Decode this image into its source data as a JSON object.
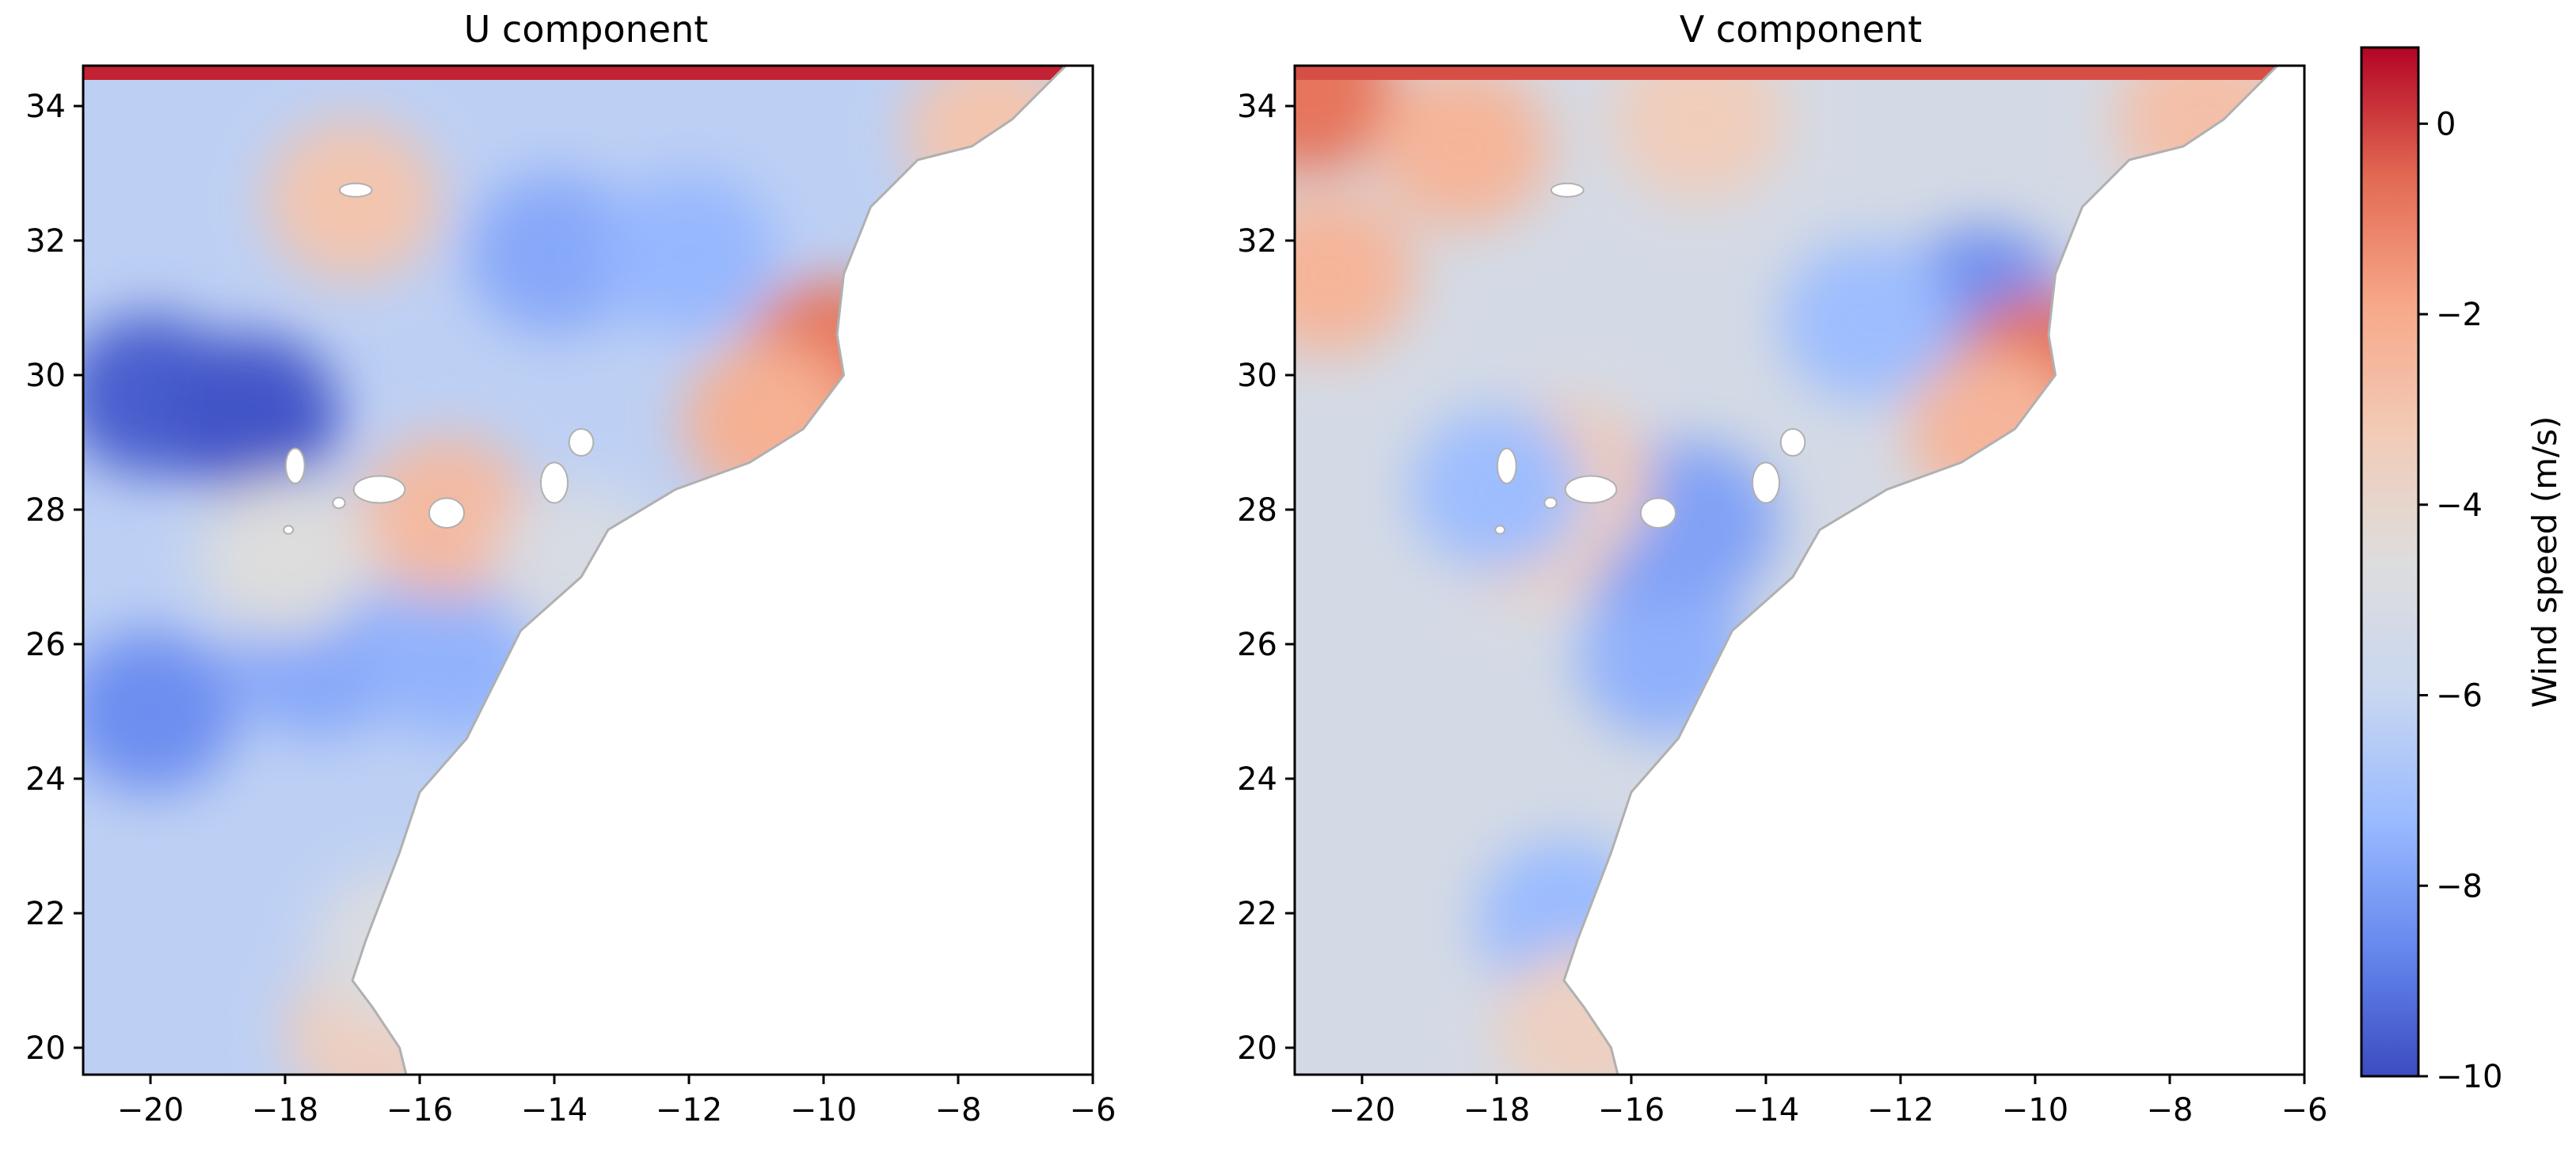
{
  "colormap": {
    "name": "coolwarm",
    "stops": [
      "#3b4cc0",
      "#6788ee",
      "#9abbff",
      "#c9d7f0",
      "#dddddd",
      "#f2cbb7",
      "#f7a889",
      "#e26952",
      "#b40426"
    ]
  },
  "chart_data": [
    {
      "type": "heatmap",
      "title": "U component",
      "xlabel": "",
      "ylabel": "",
      "xlim": [
        -21,
        -6
      ],
      "ylim": [
        19.6,
        34.6
      ],
      "xticks": [
        -20,
        -18,
        -16,
        -14,
        -12,
        -10,
        -8,
        -6
      ],
      "yticks": [
        20,
        22,
        24,
        26,
        28,
        30,
        32,
        34
      ],
      "xtick_labels": [
        "−20",
        "−18",
        "−16",
        "−14",
        "−12",
        "−10",
        "−8",
        "−6"
      ],
      "ytick_labels": [
        "20",
        "22",
        "24",
        "26",
        "28",
        "30",
        "32",
        "34"
      ],
      "value_range": [
        -10,
        0.8
      ],
      "background_value": -6.3,
      "features": [
        {
          "lon": -20,
          "lat": 29.7,
          "value": -9.6
        },
        {
          "lon": -18.5,
          "lat": 29.4,
          "value": -9.8
        },
        {
          "lon": -20,
          "lat": 25.0,
          "value": -8.5
        },
        {
          "lon": -17.5,
          "lat": 25.8,
          "value": -7.8
        },
        {
          "lon": -15.5,
          "lat": 25.8,
          "value": -7.5
        },
        {
          "lon": -14,
          "lat": 31.8,
          "value": -7.8
        },
        {
          "lon": -12,
          "lat": 31.8,
          "value": -7.4
        },
        {
          "lon": -17,
          "lat": 32.6,
          "value": -3.0
        },
        {
          "lon": -15.6,
          "lat": 27.9,
          "value": -2.6
        },
        {
          "lon": -9.9,
          "lat": 30.2,
          "value": -0.8
        },
        {
          "lon": -10.8,
          "lat": 29.3,
          "value": -2.2
        },
        {
          "lon": -7.5,
          "lat": 33.6,
          "value": -3.0
        },
        {
          "lon": -16.7,
          "lat": 20.2,
          "value": -3.5
        },
        {
          "lon": -18,
          "lat": 27.3,
          "value": -4.6
        },
        {
          "lon": -13.6,
          "lat": 27.2,
          "value": -5.0
        },
        {
          "lon": -16.3,
          "lat": 21.5,
          "value": -4.8
        }
      ]
    },
    {
      "type": "heatmap",
      "title": "V component",
      "xlabel": "",
      "ylabel": "",
      "xlim": [
        -21,
        -6
      ],
      "ylim": [
        19.6,
        34.6
      ],
      "xticks": [
        -20,
        -18,
        -16,
        -14,
        -12,
        -10,
        -8,
        -6
      ],
      "yticks": [
        20,
        22,
        24,
        26,
        28,
        30,
        32,
        34
      ],
      "xtick_labels": [
        "−20",
        "−18",
        "−16",
        "−14",
        "−12",
        "−10",
        "−8",
        "−6"
      ],
      "ytick_labels": [
        "20",
        "22",
        "24",
        "26",
        "28",
        "30",
        "32",
        "34"
      ],
      "value_range": [
        -10,
        0.8
      ],
      "background_value": -5.2,
      "features": [
        {
          "lon": -20.8,
          "lat": 34.2,
          "value": -0.8
        },
        {
          "lon": -18.5,
          "lat": 33.4,
          "value": -2.4
        },
        {
          "lon": -20.5,
          "lat": 31.5,
          "value": -2.4
        },
        {
          "lon": -15,
          "lat": 33.8,
          "value": -3.4
        },
        {
          "lon": -10.8,
          "lat": 31.0,
          "value": -8.5
        },
        {
          "lon": -12.5,
          "lat": 30.8,
          "value": -7.2
        },
        {
          "lon": -9.9,
          "lat": 30.0,
          "value": -0.6
        },
        {
          "lon": -10.6,
          "lat": 29.2,
          "value": -2.4
        },
        {
          "lon": -15.5,
          "lat": 25.8,
          "value": -7.6
        },
        {
          "lon": -17.0,
          "lat": 21.9,
          "value": -7.3
        },
        {
          "lon": -16.7,
          "lat": 20.3,
          "value": -3.6
        },
        {
          "lon": -16.3,
          "lat": 27.9,
          "value": -8.6
        },
        {
          "lon": -15.1,
          "lat": 27.8,
          "value": -8.0
        },
        {
          "lon": -17.0,
          "lat": 28.4,
          "value": -3.2
        },
        {
          "lon": -17.4,
          "lat": 27.8,
          "value": -3.6
        },
        {
          "lon": -18.0,
          "lat": 28.3,
          "value": -7.2
        },
        {
          "lon": -7.5,
          "lat": 33.8,
          "value": -2.8
        }
      ]
    }
  ],
  "colorbar": {
    "label": "Wind speed (m/s)",
    "range": [
      -10,
      0.8
    ],
    "ticks": [
      0,
      -2,
      -4,
      -6,
      -8,
      -10
    ],
    "tick_labels": [
      "0",
      "−2",
      "−4",
      "−6",
      "−8",
      "−10"
    ]
  },
  "coastline": {
    "color": "#b0b0b0",
    "land_color": "#ffffff",
    "mainland": [
      [
        -6.4,
        34.6
      ],
      [
        -7.2,
        33.8
      ],
      [
        -7.8,
        33.4
      ],
      [
        -8.6,
        33.2
      ],
      [
        -9.3,
        32.5
      ],
      [
        -9.7,
        31.5
      ],
      [
        -9.8,
        30.6
      ],
      [
        -9.7,
        30.0
      ],
      [
        -10.3,
        29.2
      ],
      [
        -11.1,
        28.7
      ],
      [
        -12.2,
        28.3
      ],
      [
        -13.2,
        27.7
      ],
      [
        -13.6,
        27.0
      ],
      [
        -14.5,
        26.2
      ],
      [
        -14.9,
        25.4
      ],
      [
        -15.3,
        24.6
      ],
      [
        -16.0,
        23.8
      ],
      [
        -16.3,
        22.9
      ],
      [
        -16.8,
        21.6
      ],
      [
        -17.0,
        21.0
      ],
      [
        -16.7,
        20.6
      ],
      [
        -16.3,
        20.0
      ],
      [
        -16.2,
        19.6
      ],
      [
        -6.0,
        19.6
      ],
      [
        -6.0,
        34.6
      ]
    ],
    "islands": [
      {
        "name": "La Palma",
        "lon": -17.85,
        "lat": 28.65,
        "rx": 0.14,
        "ry": 0.26
      },
      {
        "name": "Tenerife",
        "lon": -16.6,
        "lat": 28.3,
        "rx": 0.38,
        "ry": 0.2
      },
      {
        "name": "Gran Canaria",
        "lon": -15.6,
        "lat": 27.95,
        "rx": 0.26,
        "ry": 0.22
      },
      {
        "name": "Fuerteventura",
        "lon": -14.0,
        "lat": 28.4,
        "rx": 0.2,
        "ry": 0.3
      },
      {
        "name": "Lanzarote",
        "lon": -13.6,
        "lat": 29.0,
        "rx": 0.18,
        "ry": 0.2
      },
      {
        "name": "La Gomera",
        "lon": -17.2,
        "lat": 28.1,
        "rx": 0.09,
        "ry": 0.08
      },
      {
        "name": "El Hierro",
        "lon": -17.95,
        "lat": 27.7,
        "rx": 0.07,
        "ry": 0.06
      },
      {
        "name": "Madeira",
        "lon": -16.95,
        "lat": 32.75,
        "rx": 0.24,
        "ry": 0.1
      }
    ]
  }
}
